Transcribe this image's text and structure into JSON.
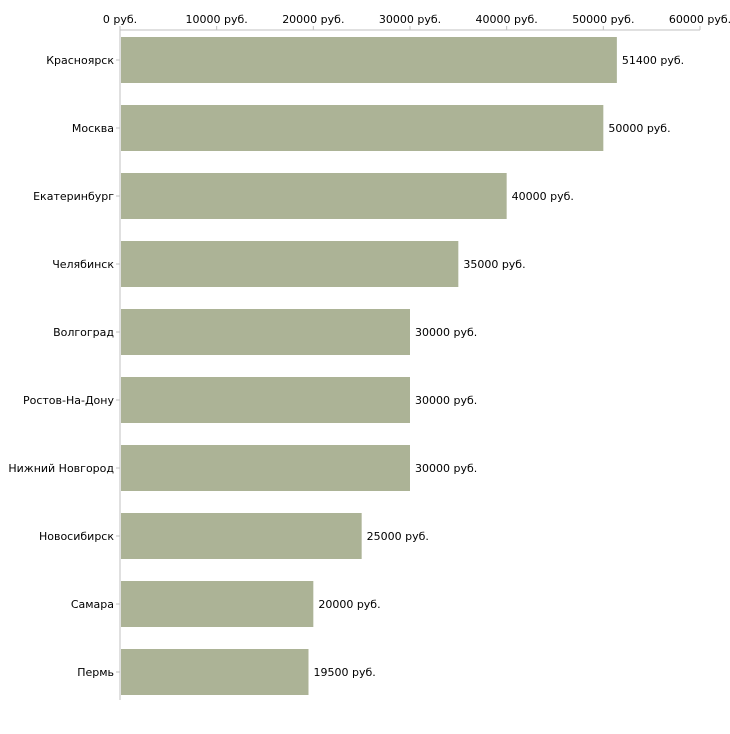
{
  "chart_data": {
    "type": "bar",
    "orientation": "horizontal",
    "title": "",
    "xlabel": "",
    "ylabel": "",
    "unit": "руб.",
    "xlim": [
      0,
      60000
    ],
    "xticks": [
      0,
      10000,
      20000,
      30000,
      40000,
      50000,
      60000
    ],
    "xtick_labels": [
      "0 руб.",
      "10000 руб.",
      "20000 руб.",
      "30000 руб.",
      "40000 руб.",
      "50000 руб.",
      "60000 руб."
    ],
    "categories": [
      "Красноярск",
      "Москва",
      "Екатеринбург",
      "Челябинск",
      "Волгоград",
      "Ростов-На-Дону",
      "Нижний Новгород",
      "Новосибирск",
      "Самара",
      "Пермь"
    ],
    "values": [
      51400,
      50000,
      40000,
      35000,
      30000,
      30000,
      30000,
      25000,
      20000,
      19500
    ],
    "value_labels": [
      "51400 руб.",
      "50000 руб.",
      "40000 руб.",
      "35000 руб.",
      "30000 руб.",
      "30000 руб.",
      "30000 руб.",
      "25000 руб.",
      "20000 руб.",
      "19500 руб."
    ],
    "bar_color": "#acb396",
    "axis_color": "#c0c0c0",
    "grid": false,
    "legend": "none"
  }
}
